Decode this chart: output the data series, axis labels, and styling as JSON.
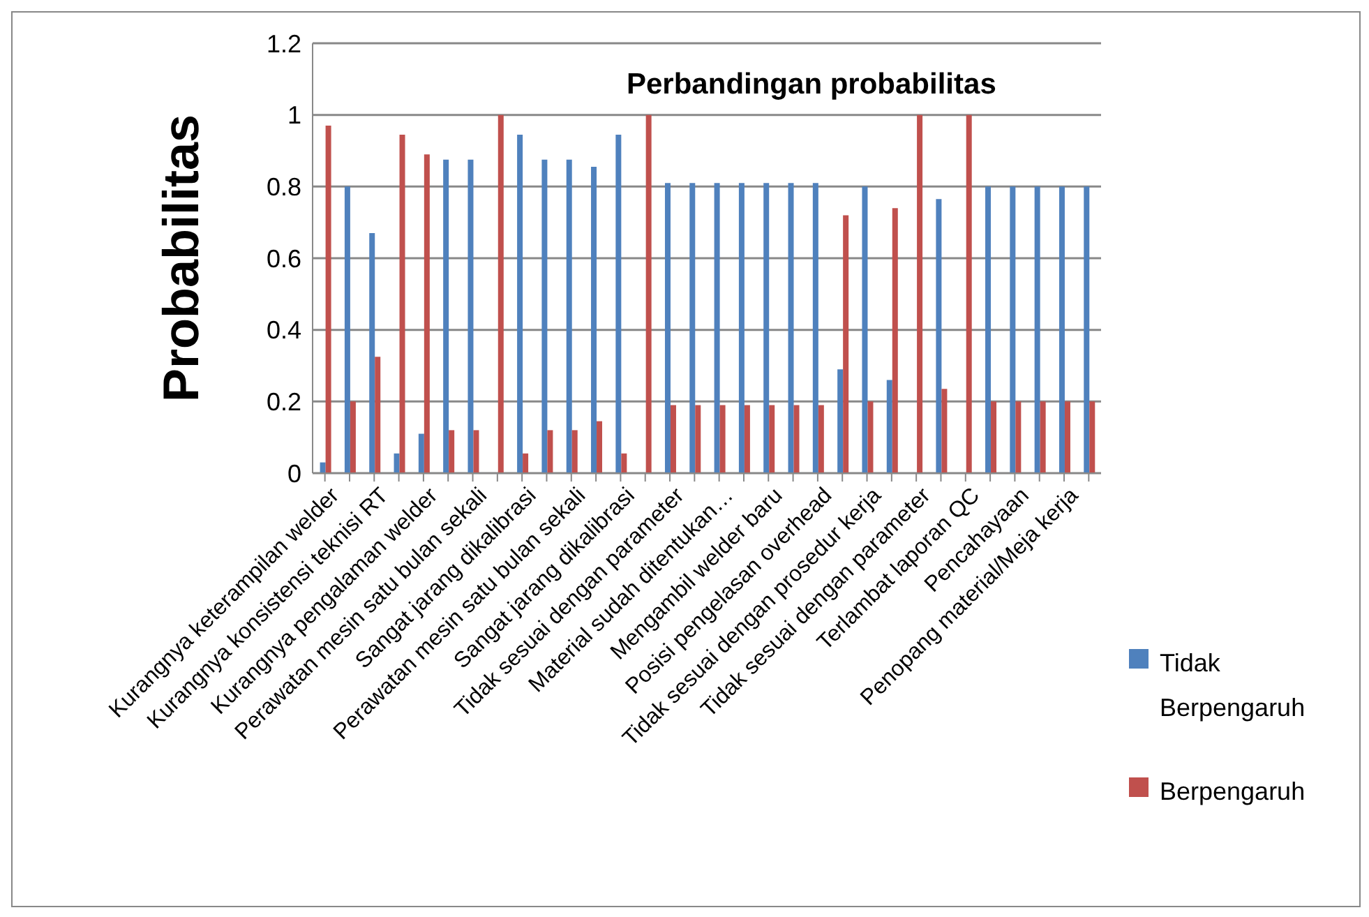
{
  "chart_data": {
    "type": "bar",
    "title": "Perbandingan probabilitas",
    "ylabel": "Probabilitas",
    "categories": [
      "Kurangnya keterampilan welder",
      null,
      "Kurangnya konsistensi teknisi RT",
      null,
      "Kurangnya pengalaman welder",
      null,
      "Perawatan mesin satu bulan sekali",
      null,
      "Sangat jarang dikalibrasi",
      null,
      "Perawatan mesin satu bulan sekali",
      null,
      "Sangat jarang dikalibrasi",
      null,
      "Tidak sesuai dengan parameter",
      null,
      "Material sudah ditentukan…",
      null,
      "Mengambil welder baru",
      null,
      "Posisi pengelasan overhead",
      null,
      "Tidak sesuai dengan prosedur kerja",
      null,
      "Tidak sesuai dengan parameter",
      null,
      "Terlambat laporan QC",
      null,
      "Pencahayaan",
      null,
      "Penopang material/Meja kerja",
      null
    ],
    "series": [
      {
        "name": "Tidak Berpengaruh",
        "color": "#4f81bd",
        "values": [
          0.03,
          0.8,
          0.67,
          0.055,
          0.11,
          0.875,
          0.875,
          0,
          0.945,
          0.875,
          0.875,
          0.855,
          0.945,
          0,
          0.81,
          0.81,
          0.81,
          0.81,
          0.81,
          0.81,
          0.81,
          0.29,
          0.8,
          0.26,
          0,
          0.765,
          0,
          0.8,
          0.8,
          0.8,
          0.8,
          0.8
        ]
      },
      {
        "name": "Berpengaruh",
        "color": "#c0504d",
        "values": [
          0.97,
          0.2,
          0.325,
          0.945,
          0.89,
          0.12,
          0.12,
          1,
          0.055,
          0.12,
          0.12,
          0.145,
          0.055,
          1,
          0.19,
          0.19,
          0.19,
          0.19,
          0.19,
          0.19,
          0.19,
          0.72,
          0.2,
          0.74,
          1,
          0.235,
          1,
          0.2,
          0.2,
          0.2,
          0.2,
          0.2
        ]
      }
    ],
    "ylim": [
      0,
      1.2
    ],
    "yticks": [
      0,
      0.2,
      0.4,
      0.6,
      0.8,
      1,
      1.2
    ],
    "grid": "y",
    "legend": "right"
  }
}
